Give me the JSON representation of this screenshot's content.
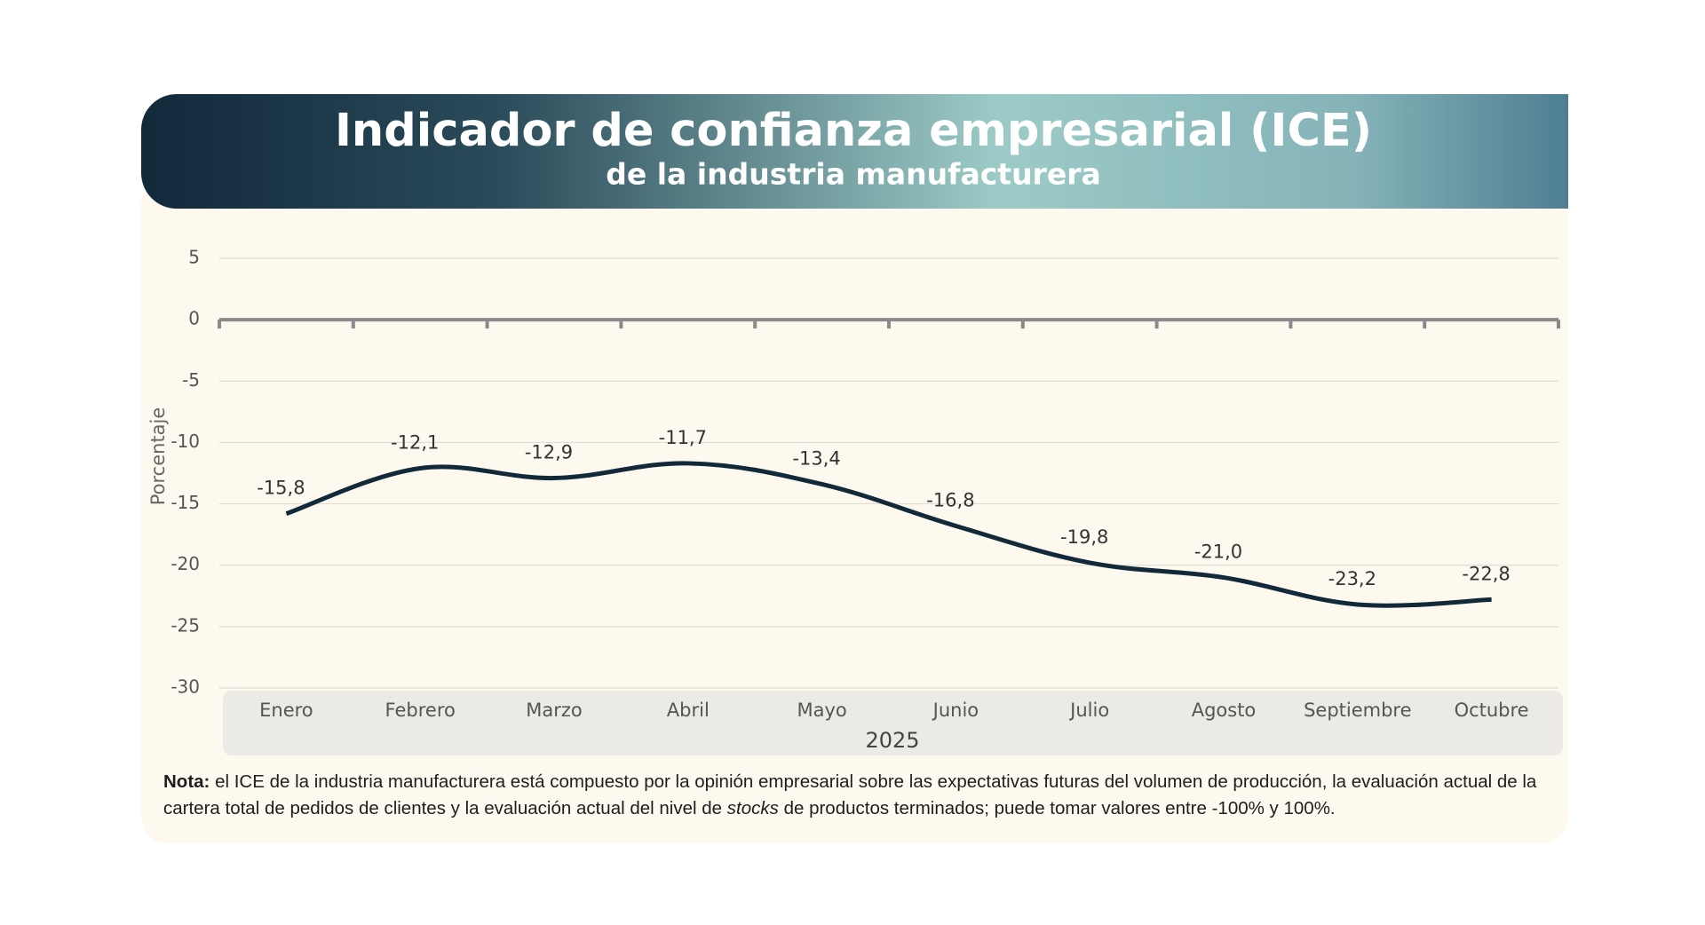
{
  "chart_data": {
    "type": "line",
    "title": "Indicador de confianza empresarial (ICE)",
    "subtitle": "de la industria manufacturera",
    "y_label": "Porcentaje",
    "x_label": "2025",
    "categories": [
      "Enero",
      "Febrero",
      "Marzo",
      "Abril",
      "Mayo",
      "Junio",
      "Julio",
      "Agosto",
      "Septiembre",
      "Octubre"
    ],
    "values": [
      -15.8,
      -12.1,
      -12.9,
      -11.7,
      -13.4,
      -16.8,
      -19.8,
      -21.0,
      -23.2,
      -22.8
    ],
    "value_labels": [
      "-15,8",
      "-12,1",
      "-12,9",
      "-11,7",
      "-13,4",
      "-16,8",
      "-19,8",
      "-21,0",
      "-23,2",
      "-22,8"
    ],
    "color": "#12293a",
    "ylim": [
      -30,
      5
    ],
    "yticks": [
      5,
      0,
      -5,
      -10,
      -15,
      -20,
      -25,
      -30
    ],
    "grid": true
  },
  "note": {
    "label": "Nota:",
    "text_1": " el ICE de la industria manufacturera está compuesto por la opinión empresarial sobre las expectativas futuras del volumen de producción, la evaluación actual de la cartera total de pedidos de clientes y la evaluación actual del nivel de ",
    "italic": "stocks",
    "text_2": " de productos terminados; puede tomar valores entre -100% y 100%."
  }
}
